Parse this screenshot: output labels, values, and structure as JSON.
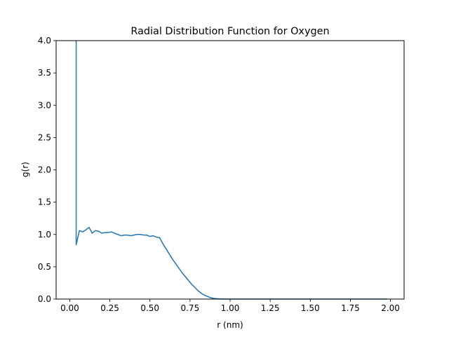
{
  "chart_data": {
    "type": "line",
    "title": "Radial Distribution Function for Oxygen",
    "xlabel": "r (nm)",
    "ylabel": "g(r)",
    "xlim": [
      -0.085,
      2.085
    ],
    "ylim": [
      0,
      4
    ],
    "xticks": [
      0.0,
      0.25,
      0.5,
      0.75,
      1.0,
      1.25,
      1.5,
      1.75,
      2.0
    ],
    "xtick_labels": [
      "0.00",
      "0.25",
      "0.50",
      "0.75",
      "1.00",
      "1.25",
      "1.50",
      "1.75",
      "2.00"
    ],
    "yticks": [
      0.0,
      0.5,
      1.0,
      1.5,
      2.0,
      2.5,
      3.0,
      3.5,
      4.0
    ],
    "ytick_labels": [
      "0.0",
      "0.5",
      "1.0",
      "1.5",
      "2.0",
      "2.5",
      "3.0",
      "3.5",
      "4.0"
    ],
    "grid": false,
    "line_color": "#1f77b4",
    "series": [
      {
        "x": [
          0.04,
          0.04,
          0.04,
          0.06,
          0.08,
          0.1,
          0.12,
          0.14,
          0.16,
          0.18,
          0.2,
          0.22,
          0.24,
          0.26,
          0.28,
          0.3,
          0.32,
          0.34,
          0.36,
          0.38,
          0.4,
          0.42,
          0.44,
          0.46,
          0.48,
          0.5,
          0.52,
          0.54,
          0.56,
          0.58,
          0.6,
          0.62,
          0.64,
          0.66,
          0.68,
          0.7,
          0.72,
          0.74,
          0.76,
          0.78,
          0.8,
          0.82,
          0.84,
          0.86,
          0.88,
          0.9,
          0.92,
          0.94,
          0.96,
          0.98,
          1.0,
          1.02,
          1.04,
          1.06,
          1.08,
          1.1,
          1.2,
          1.3,
          1.4,
          1.5,
          1.6,
          1.7,
          1.8,
          1.9,
          1.98
        ],
        "y": [
          4.0,
          2.0,
          0.84,
          1.06,
          1.04,
          1.07,
          1.11,
          1.02,
          1.06,
          1.05,
          1.02,
          1.03,
          1.03,
          1.04,
          1.02,
          1.0,
          0.98,
          0.99,
          0.99,
          0.98,
          0.99,
          1.0,
          1.0,
          0.99,
          0.99,
          0.97,
          0.98,
          0.96,
          0.95,
          0.86,
          0.78,
          0.7,
          0.62,
          0.55,
          0.48,
          0.41,
          0.35,
          0.29,
          0.23,
          0.18,
          0.13,
          0.09,
          0.06,
          0.04,
          0.02,
          0.01,
          0.005,
          0.002,
          0.0,
          0.0,
          0.0,
          0.0,
          0.0,
          0.0,
          0.0,
          0.0,
          0.0,
          0.0,
          0.0,
          0.0,
          0.0,
          0.0,
          0.0,
          0.0,
          0.0
        ]
      }
    ]
  }
}
